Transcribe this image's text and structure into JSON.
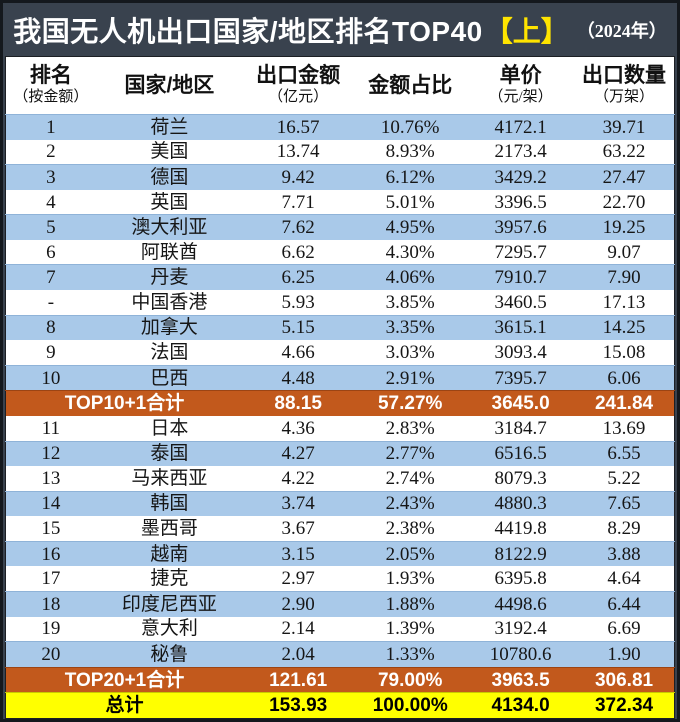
{
  "title": {
    "main": "我国无人机出口国家/地区排名TOP40",
    "highlight": "【上】",
    "year": "（2024年）"
  },
  "colors": {
    "page_background": "#39424e",
    "outer_border": "#14181d",
    "row_blue": "#a9c9e9",
    "row_white": "#ffffff",
    "subtotal_orange": "#c2591c",
    "total_yellow": "#ffff00",
    "title_text": "#ffffff",
    "title_highlight": "#ffe400",
    "table_text": "#161616"
  },
  "table": {
    "columns": [
      {
        "label": "排名",
        "sub": "（按金额）"
      },
      {
        "label": "国家/地区",
        "sub": ""
      },
      {
        "label": "出口金额",
        "sub": "（亿元）"
      },
      {
        "label": "金额占比",
        "sub": ""
      },
      {
        "label": "单价",
        "sub": "（元/架）"
      },
      {
        "label": "出口数量",
        "sub": "（万架）"
      }
    ],
    "rows": [
      {
        "type": "data",
        "shade": "blue",
        "rank": "1",
        "country": "荷兰",
        "amount": "16.57",
        "share": "10.76%",
        "price": "4172.1",
        "qty": "39.71"
      },
      {
        "type": "data",
        "shade": "white",
        "rank": "2",
        "country": "美国",
        "amount": "13.74",
        "share": "8.93%",
        "price": "2173.4",
        "qty": "63.22"
      },
      {
        "type": "data",
        "shade": "blue",
        "rank": "3",
        "country": "德国",
        "amount": "9.42",
        "share": "6.12%",
        "price": "3429.2",
        "qty": "27.47"
      },
      {
        "type": "data",
        "shade": "white",
        "rank": "4",
        "country": "英国",
        "amount": "7.71",
        "share": "5.01%",
        "price": "3396.5",
        "qty": "22.70"
      },
      {
        "type": "data",
        "shade": "blue",
        "rank": "5",
        "country": "澳大利亚",
        "amount": "7.62",
        "share": "4.95%",
        "price": "3957.6",
        "qty": "19.25"
      },
      {
        "type": "data",
        "shade": "white",
        "rank": "6",
        "country": "阿联酋",
        "amount": "6.62",
        "share": "4.30%",
        "price": "7295.7",
        "qty": "9.07"
      },
      {
        "type": "data",
        "shade": "blue",
        "rank": "7",
        "country": "丹麦",
        "amount": "6.25",
        "share": "4.06%",
        "price": "7910.7",
        "qty": "7.90"
      },
      {
        "type": "data",
        "shade": "white",
        "rank": "-",
        "country": "中国香港",
        "amount": "5.93",
        "share": "3.85%",
        "price": "3460.5",
        "qty": "17.13"
      },
      {
        "type": "data",
        "shade": "blue",
        "rank": "8",
        "country": "加拿大",
        "amount": "5.15",
        "share": "3.35%",
        "price": "3615.1",
        "qty": "14.25"
      },
      {
        "type": "data",
        "shade": "white",
        "rank": "9",
        "country": "法国",
        "amount": "4.66",
        "share": "3.03%",
        "price": "3093.4",
        "qty": "15.08"
      },
      {
        "type": "data",
        "shade": "blue",
        "rank": "10",
        "country": "巴西",
        "amount": "4.48",
        "share": "2.91%",
        "price": "7395.7",
        "qty": "6.06"
      },
      {
        "type": "subtotal",
        "label": "TOP10+1合计",
        "amount": "88.15",
        "share": "57.27%",
        "price": "3645.0",
        "qty": "241.84"
      },
      {
        "type": "data",
        "shade": "white",
        "rank": "11",
        "country": "日本",
        "amount": "4.36",
        "share": "2.83%",
        "price": "3184.7",
        "qty": "13.69"
      },
      {
        "type": "data",
        "shade": "blue",
        "rank": "12",
        "country": "泰国",
        "amount": "4.27",
        "share": "2.77%",
        "price": "6516.5",
        "qty": "6.55"
      },
      {
        "type": "data",
        "shade": "white",
        "rank": "13",
        "country": "马来西亚",
        "amount": "4.22",
        "share": "2.74%",
        "price": "8079.3",
        "qty": "5.22"
      },
      {
        "type": "data",
        "shade": "blue",
        "rank": "14",
        "country": "韩国",
        "amount": "3.74",
        "share": "2.43%",
        "price": "4880.3",
        "qty": "7.65"
      },
      {
        "type": "data",
        "shade": "white",
        "rank": "15",
        "country": "墨西哥",
        "amount": "3.67",
        "share": "2.38%",
        "price": "4419.8",
        "qty": "8.29"
      },
      {
        "type": "data",
        "shade": "blue",
        "rank": "16",
        "country": "越南",
        "amount": "3.15",
        "share": "2.05%",
        "price": "8122.9",
        "qty": "3.88"
      },
      {
        "type": "data",
        "shade": "white",
        "rank": "17",
        "country": "捷克",
        "amount": "2.97",
        "share": "1.93%",
        "price": "6395.8",
        "qty": "4.64"
      },
      {
        "type": "data",
        "shade": "blue",
        "rank": "18",
        "country": "印度尼西亚",
        "amount": "2.90",
        "share": "1.88%",
        "price": "4498.6",
        "qty": "6.44"
      },
      {
        "type": "data",
        "shade": "white",
        "rank": "19",
        "country": "意大利",
        "amount": "2.14",
        "share": "1.39%",
        "price": "3192.4",
        "qty": "6.69"
      },
      {
        "type": "data",
        "shade": "blue",
        "rank": "20",
        "country": "秘鲁",
        "amount": "2.04",
        "share": "1.33%",
        "price": "10780.6",
        "qty": "1.90"
      },
      {
        "type": "subtotal",
        "label": "TOP20+1合计",
        "amount": "121.61",
        "share": "79.00%",
        "price": "3963.5",
        "qty": "306.81"
      },
      {
        "type": "total",
        "label": "总计",
        "amount": "153.93",
        "share": "100.00%",
        "price": "4134.0",
        "qty": "372.34"
      }
    ]
  },
  "chart_data": {
    "type": "table",
    "title": "我国无人机出口国家/地区排名TOP40【上】（2024年）",
    "columns": [
      "排名（按金额）",
      "国家/地区",
      "出口金额（亿元）",
      "金额占比",
      "单价（元/架）",
      "出口数量（万架）"
    ],
    "rows": [
      [
        "1",
        "荷兰",
        16.57,
        "10.76%",
        4172.1,
        39.71
      ],
      [
        "2",
        "美国",
        13.74,
        "8.93%",
        2173.4,
        63.22
      ],
      [
        "3",
        "德国",
        9.42,
        "6.12%",
        3429.2,
        27.47
      ],
      [
        "4",
        "英国",
        7.71,
        "5.01%",
        3396.5,
        22.7
      ],
      [
        "5",
        "澳大利亚",
        7.62,
        "4.95%",
        3957.6,
        19.25
      ],
      [
        "6",
        "阿联酋",
        6.62,
        "4.30%",
        7295.7,
        9.07
      ],
      [
        "7",
        "丹麦",
        6.25,
        "4.06%",
        7910.7,
        7.9
      ],
      [
        "-",
        "中国香港",
        5.93,
        "3.85%",
        3460.5,
        17.13
      ],
      [
        "8",
        "加拿大",
        5.15,
        "3.35%",
        3615.1,
        14.25
      ],
      [
        "9",
        "法国",
        4.66,
        "3.03%",
        3093.4,
        15.08
      ],
      [
        "10",
        "巴西",
        4.48,
        "2.91%",
        7395.7,
        6.06
      ],
      [
        "TOP10+1合计",
        "",
        88.15,
        "57.27%",
        3645.0,
        241.84
      ],
      [
        "11",
        "日本",
        4.36,
        "2.83%",
        3184.7,
        13.69
      ],
      [
        "12",
        "泰国",
        4.27,
        "2.77%",
        6516.5,
        6.55
      ],
      [
        "13",
        "马来西亚",
        4.22,
        "2.74%",
        8079.3,
        5.22
      ],
      [
        "14",
        "韩国",
        3.74,
        "2.43%",
        4880.3,
        7.65
      ],
      [
        "15",
        "墨西哥",
        3.67,
        "2.38%",
        4419.8,
        8.29
      ],
      [
        "16",
        "越南",
        3.15,
        "2.05%",
        8122.9,
        3.88
      ],
      [
        "17",
        "捷克",
        2.97,
        "1.93%",
        6395.8,
        4.64
      ],
      [
        "18",
        "印度尼西亚",
        2.9,
        "1.88%",
        4498.6,
        6.44
      ],
      [
        "19",
        "意大利",
        2.14,
        "1.39%",
        3192.4,
        6.69
      ],
      [
        "20",
        "秘鲁",
        2.04,
        "1.33%",
        10780.6,
        1.9
      ],
      [
        "TOP20+1合计",
        "",
        121.61,
        "79.00%",
        3963.5,
        306.81
      ],
      [
        "总计",
        "",
        153.93,
        "100.00%",
        4134.0,
        372.34
      ]
    ]
  }
}
